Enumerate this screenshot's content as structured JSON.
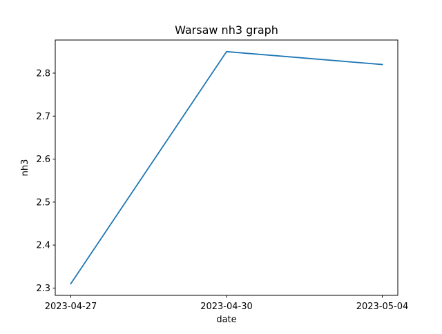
{
  "chart_data": {
    "type": "line",
    "title": "Warsaw nh3 graph",
    "xlabel": "date",
    "ylabel": "nh3",
    "categories": [
      "2023-04-27",
      "2023-04-30",
      "2023-05-04"
    ],
    "series": [
      {
        "name": "nh3",
        "values": [
          2.31,
          2.85,
          2.82
        ],
        "color": "#1f77b4"
      }
    ],
    "yticks": [
      2.3,
      2.4,
      2.5,
      2.6,
      2.7,
      2.8
    ],
    "ytick_labels": [
      "2.3",
      "2.4",
      "2.5",
      "2.6",
      "2.7",
      "2.8"
    ],
    "ylim": [
      2.283,
      2.877
    ],
    "grid": false,
    "legend": "none"
  }
}
